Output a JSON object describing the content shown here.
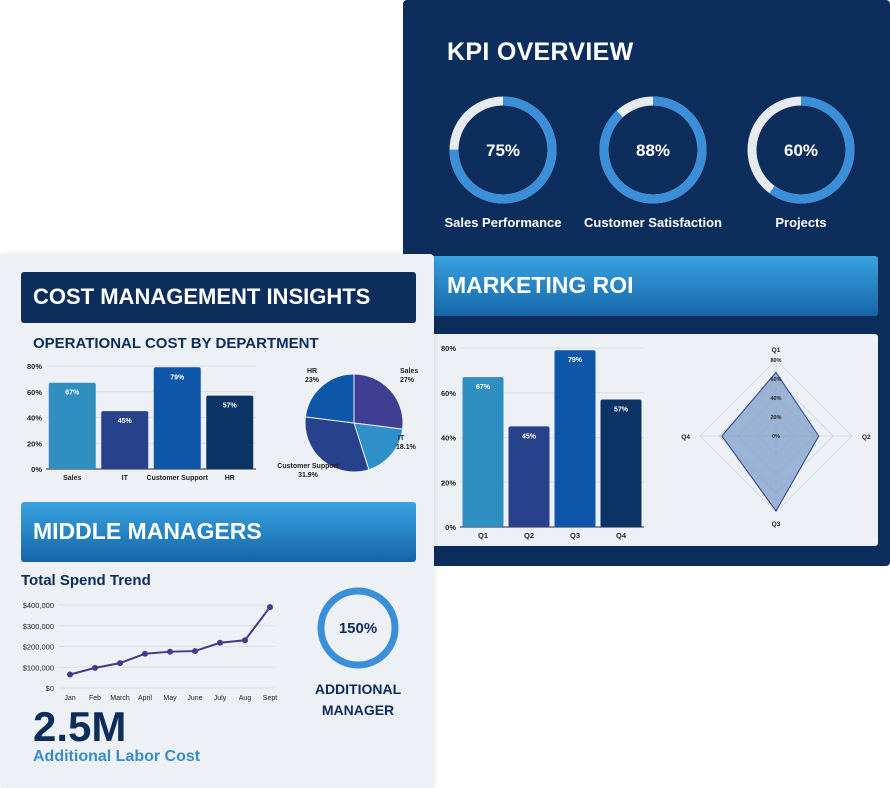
{
  "colors": {
    "navy": "#0d2d5c",
    "teal": "#2f8fc1",
    "indigo": "#27418a",
    "royal": "#0d56a8",
    "deep": "#0b3366",
    "ring_track": "#e6e9ee",
    "ring_fill": "#3a8fd8",
    "radar_fill": "#7f9ec8",
    "line": "#433a8c"
  },
  "kpi": {
    "title": "KPI OVERVIEW",
    "gauges": [
      {
        "label": "Sales Performance",
        "value_text": "75%",
        "value": 0.75
      },
      {
        "label": "Customer Satisfaction",
        "value_text": "88%",
        "value": 0.88
      },
      {
        "label": "Projects",
        "value_text": "60%",
        "value": 0.6
      }
    ]
  },
  "marketing": {
    "title": "MARKETING ROI"
  },
  "cost": {
    "title": "COST MANAGEMENT INSIGHTS",
    "subtitle": "OPERATIONAL COST BY DEPARTMENT"
  },
  "middle": {
    "title": "MIDDLE MANAGERS",
    "spend_title": "Total Spend Trend",
    "gauge_text": "150%",
    "gauge_value": 1.0,
    "label_line1": "ADDITIONAL",
    "label_line2": "MANAGER",
    "big_number": "2.5M",
    "big_caption": "Additional Labor Cost"
  },
  "chart_data": [
    {
      "id": "dept-bar",
      "type": "bar",
      "categories": [
        "Sales",
        "IT",
        "Customer Support",
        "HR"
      ],
      "values": [
        67,
        45,
        79,
        57
      ],
      "value_labels": [
        "67%",
        "45%",
        "79%",
        "57%"
      ],
      "ylim": [
        0,
        80
      ],
      "yticks": [
        0,
        20,
        40,
        60,
        80
      ],
      "ytick_labels": [
        "0%",
        "20%",
        "40%",
        "60%",
        "80%"
      ],
      "grid": true
    },
    {
      "id": "dept-pie",
      "type": "pie",
      "slices": [
        {
          "label": "Sales",
          "value": 27,
          "value_text": "27%"
        },
        {
          "label": "IT",
          "value": 18.1,
          "value_text": "18.1%"
        },
        {
          "label": "Customer Support",
          "value": 31.9,
          "value_text": "31.9%"
        },
        {
          "label": "HR",
          "value": 23,
          "value_text": "23%"
        }
      ]
    },
    {
      "id": "roi-bar",
      "type": "bar",
      "categories": [
        "Q1",
        "Q2",
        "Q3",
        "Q4"
      ],
      "values": [
        67,
        45,
        79,
        57
      ],
      "value_labels": [
        "67%",
        "45%",
        "79%",
        "57%"
      ],
      "ylim": [
        0,
        80
      ],
      "yticks": [
        0,
        20,
        40,
        60,
        80
      ],
      "ytick_labels": [
        "0%",
        "20%",
        "40%",
        "60%",
        "80%"
      ],
      "grid": true
    },
    {
      "id": "roi-radar",
      "type": "radar",
      "axes": [
        "Q1",
        "Q2",
        "Q3",
        "Q4"
      ],
      "values": [
        67,
        45,
        79,
        57
      ],
      "rmax": 80,
      "rticks": [
        0,
        20,
        40,
        60,
        80
      ],
      "rtick_labels": [
        "0%",
        "20%",
        "40%",
        "60%",
        "80%"
      ]
    },
    {
      "id": "spend-line",
      "type": "line",
      "categories": [
        "Jan",
        "Feb",
        "March",
        "April",
        "May",
        "June",
        "July",
        "Aug",
        "Sept"
      ],
      "values": [
        65000,
        97000,
        120000,
        165000,
        175000,
        178000,
        218000,
        230000,
        390000
      ],
      "ylim": [
        0,
        400000
      ],
      "yticks": [
        0,
        100000,
        200000,
        300000,
        400000
      ],
      "ytick_labels": [
        "$0",
        "$100,000",
        "$200,000",
        "$300,000",
        "$400,000"
      ],
      "grid": true
    }
  ]
}
